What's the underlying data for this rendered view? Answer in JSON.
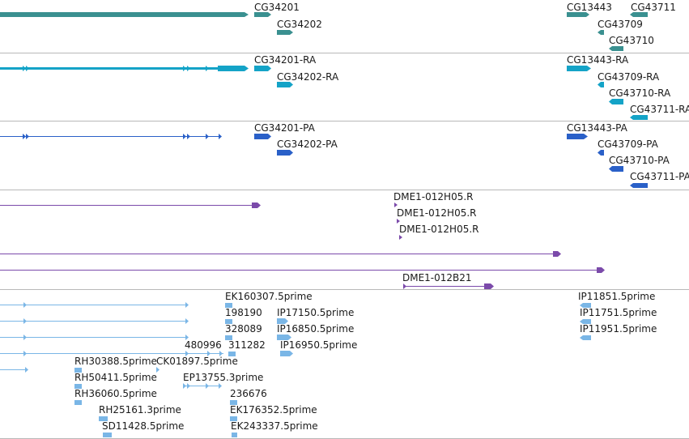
{
  "colors": {
    "gene": "#3a9090",
    "transcript": "#14a3c7",
    "protein": "#2a60c8",
    "est": "#7b4aaa",
    "cdna": "#7ab6e6",
    "divider": "#b8b8b8"
  },
  "tracks": {
    "genes": {
      "features": [
        {
          "label": "CG34201"
        },
        {
          "label": "CG34202"
        },
        {
          "label": "CG13443"
        },
        {
          "label": "CG43711"
        },
        {
          "label": "CG43709"
        },
        {
          "label": "CG43710"
        }
      ]
    },
    "transcripts": {
      "features": [
        {
          "label": "CG34201-RA"
        },
        {
          "label": "CG34202-RA"
        },
        {
          "label": "CG13443-RA"
        },
        {
          "label": "CG43709-RA"
        },
        {
          "label": "CG43710-RA"
        },
        {
          "label": "CG43711-RA"
        }
      ]
    },
    "proteins": {
      "features": [
        {
          "label": "CG34201-PA"
        },
        {
          "label": "CG34202-PA"
        },
        {
          "label": "CG13443-PA"
        },
        {
          "label": "CG43709-PA"
        },
        {
          "label": "CG43710-PA"
        },
        {
          "label": "CG43711-PA"
        }
      ]
    },
    "ests": {
      "features": [
        {
          "label": "DME1-012H05.R"
        },
        {
          "label": "DME1-012H05.R"
        },
        {
          "label": "DME1-012H05.R"
        },
        {
          "label": "DME1-012B21"
        }
      ]
    },
    "cdnas": {
      "features": [
        {
          "label": "EK160307.5prime"
        },
        {
          "label": "198190"
        },
        {
          "label": "IP17150.5prime"
        },
        {
          "label": "328089"
        },
        {
          "label": "IP16850.5prime"
        },
        {
          "label": "480996"
        },
        {
          "label": "311282"
        },
        {
          "label": "IP16950.5prime"
        },
        {
          "label": "RH30388.5prime"
        },
        {
          "label": "CK01897.5prime"
        },
        {
          "label": "RH50411.5prime"
        },
        {
          "label": "EP13755.3prime"
        },
        {
          "label": "RH36060.5prime"
        },
        {
          "label": "236676"
        },
        {
          "label": "RH25161.3prime"
        },
        {
          "label": "EK176352.5prime"
        },
        {
          "label": "SD11428.5prime"
        },
        {
          "label": "EK243337.5prime"
        },
        {
          "label": "IP11851.5prime"
        },
        {
          "label": "IP11751.5prime"
        },
        {
          "label": "IP11951.5prime"
        }
      ]
    }
  }
}
